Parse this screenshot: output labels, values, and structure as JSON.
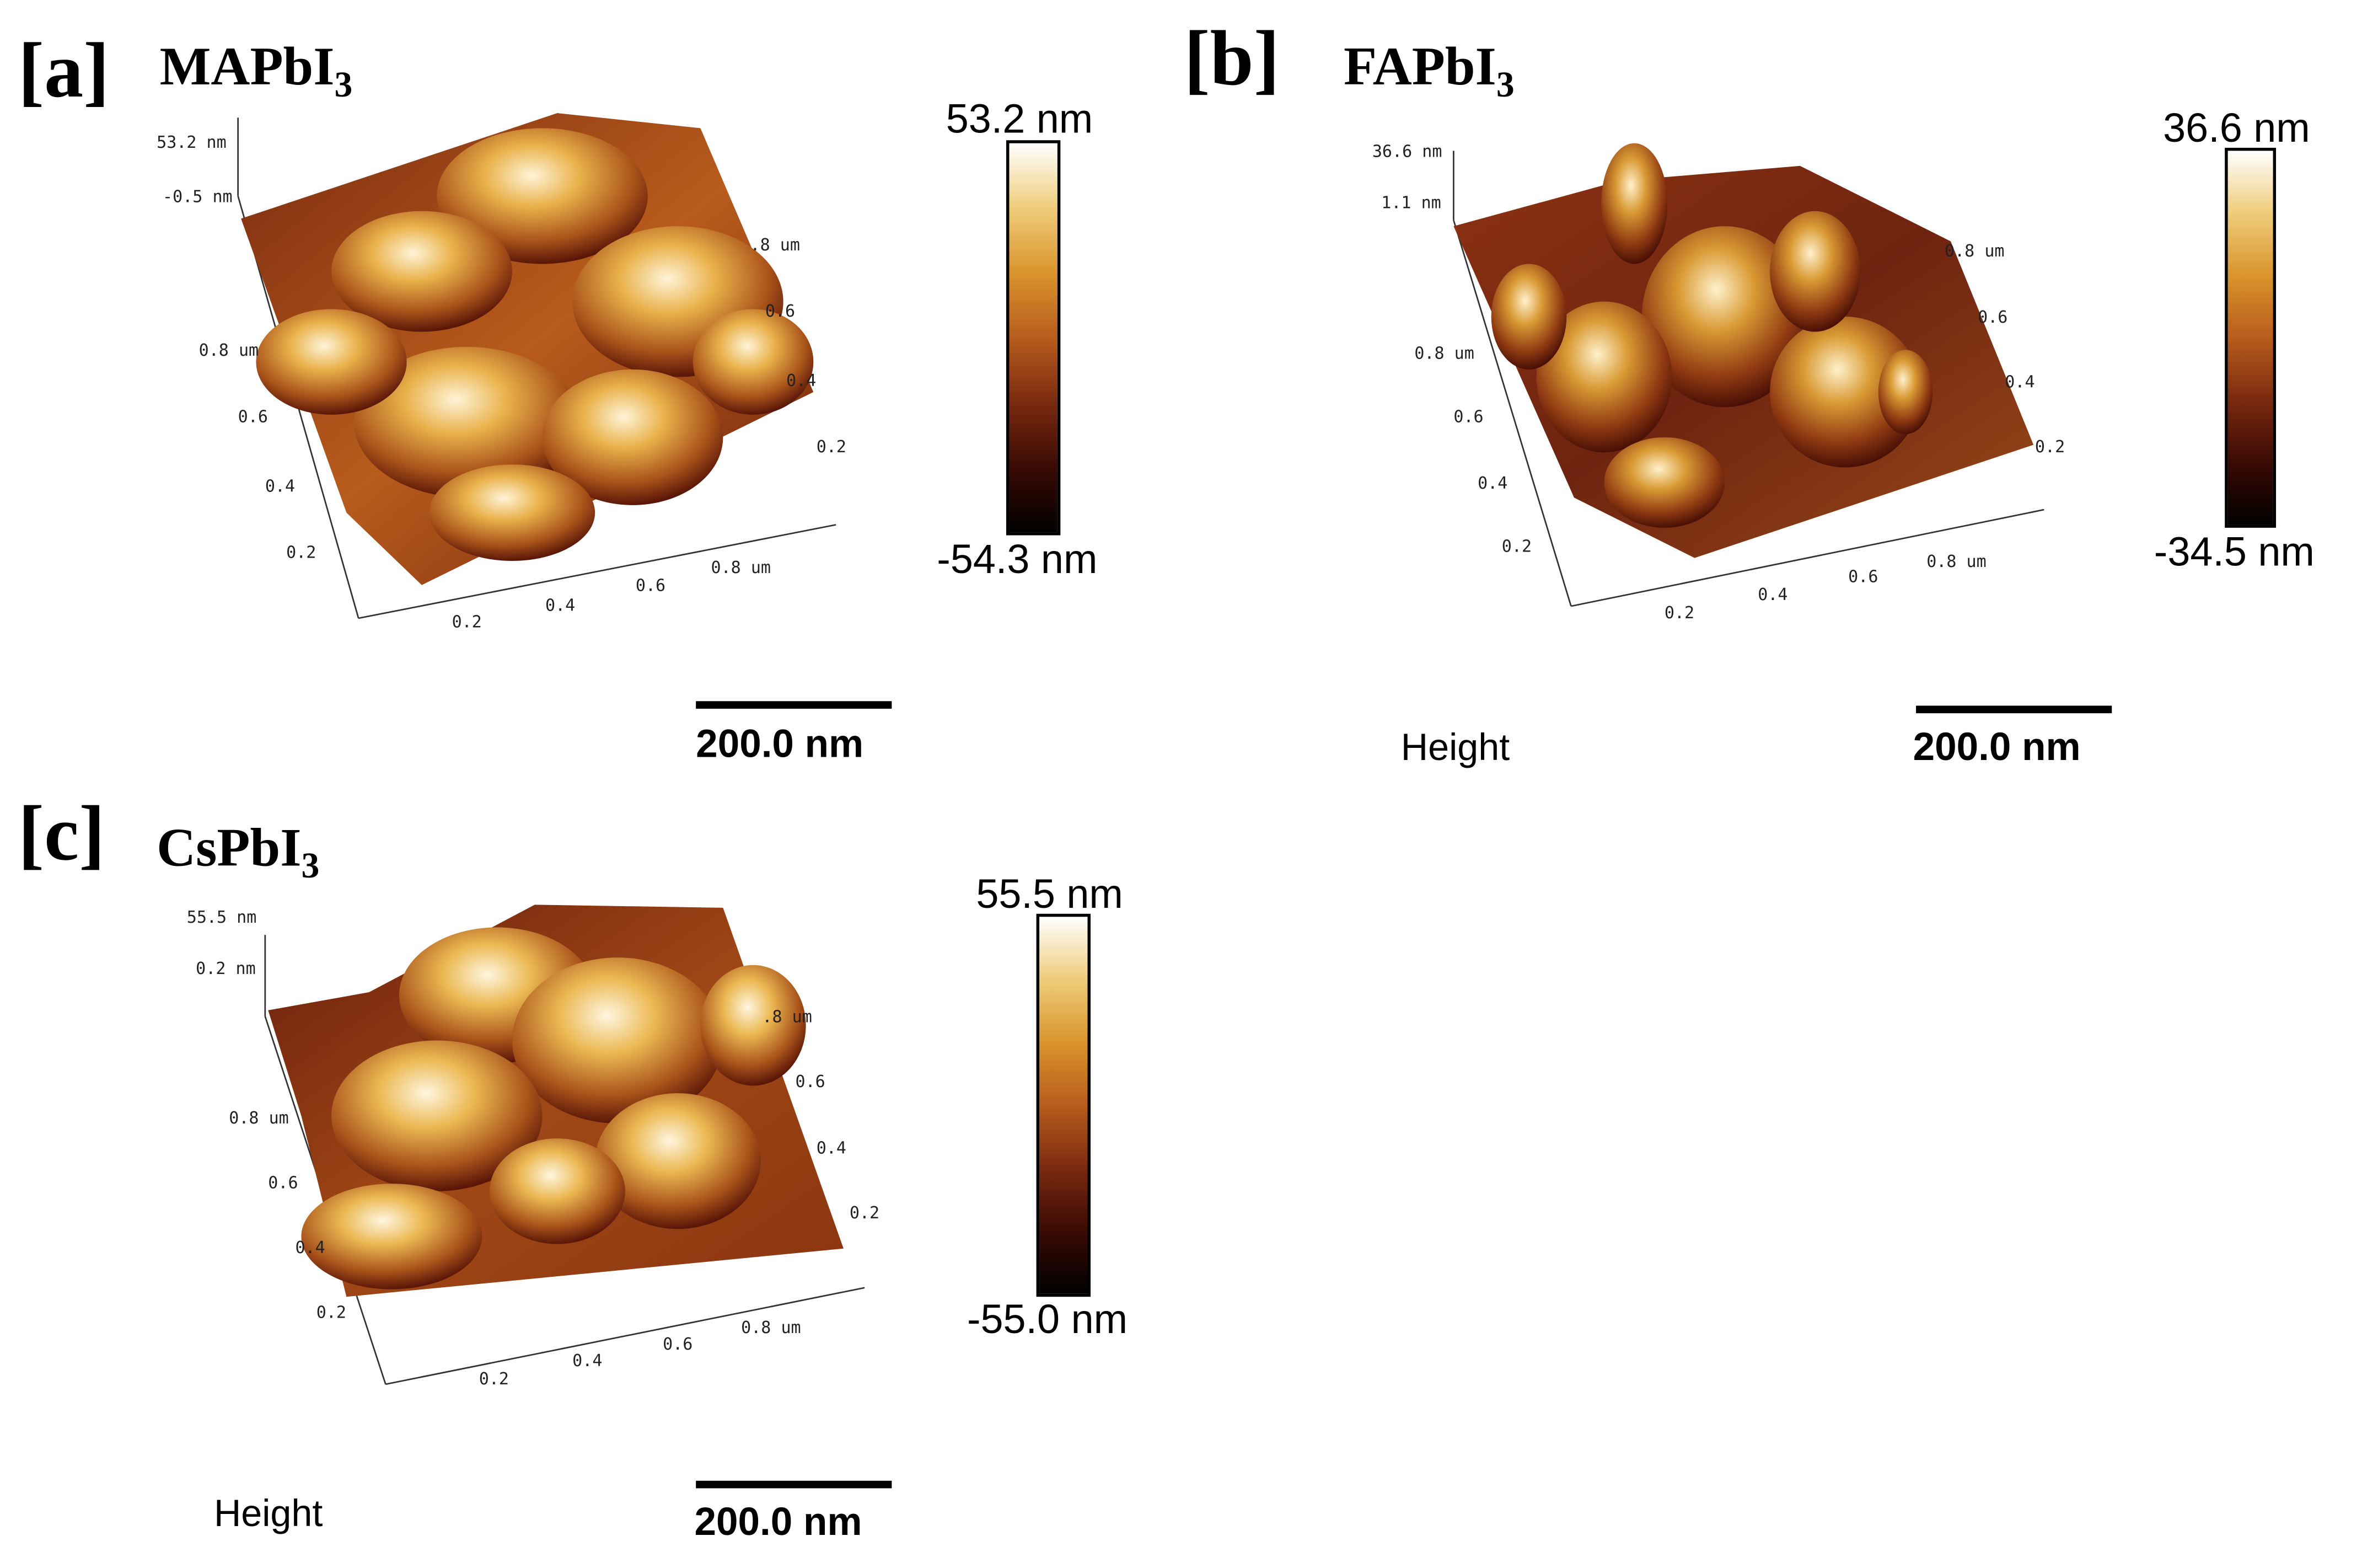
{
  "figure": {
    "panels": [
      {
        "label": "[a]",
        "title_main": "MAPbI",
        "title_sub": "3",
        "z_top_label": "53.2 nm",
        "z_mid_label": "-0.5 nm",
        "colorbar_max": "53.2 nm",
        "colorbar_min": "-54.3 nm",
        "scale_bar": "200.0 nm",
        "height_label": "",
        "x_ticks": [
          "0.2",
          "0.4",
          "0.6",
          "0.8 um"
        ],
        "y_ticks_left": [
          "0.2",
          "0.4",
          "0.6",
          "0.8 um"
        ],
        "y_ticks_right": [
          "0.2",
          "0.4",
          "0.6",
          ".8 um"
        ]
      },
      {
        "label": "[b]",
        "title_main": "FAPbI",
        "title_sub": "3",
        "z_top_label": "36.6 nm",
        "z_mid_label": "1.1 nm",
        "colorbar_max": "36.6 nm",
        "colorbar_min": "-34.5 nm",
        "scale_bar": "200.0 nm",
        "height_label": "Height",
        "x_ticks": [
          "0.2",
          "0.4",
          "0.6",
          "0.8 um"
        ],
        "y_ticks_left": [
          "0.2",
          "0.4",
          "0.6",
          "0.8 um"
        ],
        "y_ticks_right": [
          "0.2",
          "0.4",
          "0.6",
          "0.8 um"
        ]
      },
      {
        "label": "[c]",
        "title_main": "CsPbI",
        "title_sub": "3",
        "z_top_label": "55.5 nm",
        "z_mid_label": "0.2 nm",
        "colorbar_max": "55.5 nm",
        "colorbar_min": "-55.0 nm",
        "scale_bar": "200.0 nm",
        "height_label": "Height",
        "x_ticks": [
          "0.2",
          "0.4",
          "0.6",
          "0.8 um"
        ],
        "y_ticks_left": [
          "0.2",
          "0.4",
          "0.6",
          "0.8 um"
        ],
        "y_ticks_right": [
          "0.2",
          "0.4",
          "0.6",
          ".8 um"
        ]
      }
    ],
    "colors": {
      "colormap": [
        "#000000",
        "#3a0a04",
        "#7a2a10",
        "#b85c1c",
        "#d9942c",
        "#efcc7a",
        "#ffffff"
      ]
    }
  }
}
